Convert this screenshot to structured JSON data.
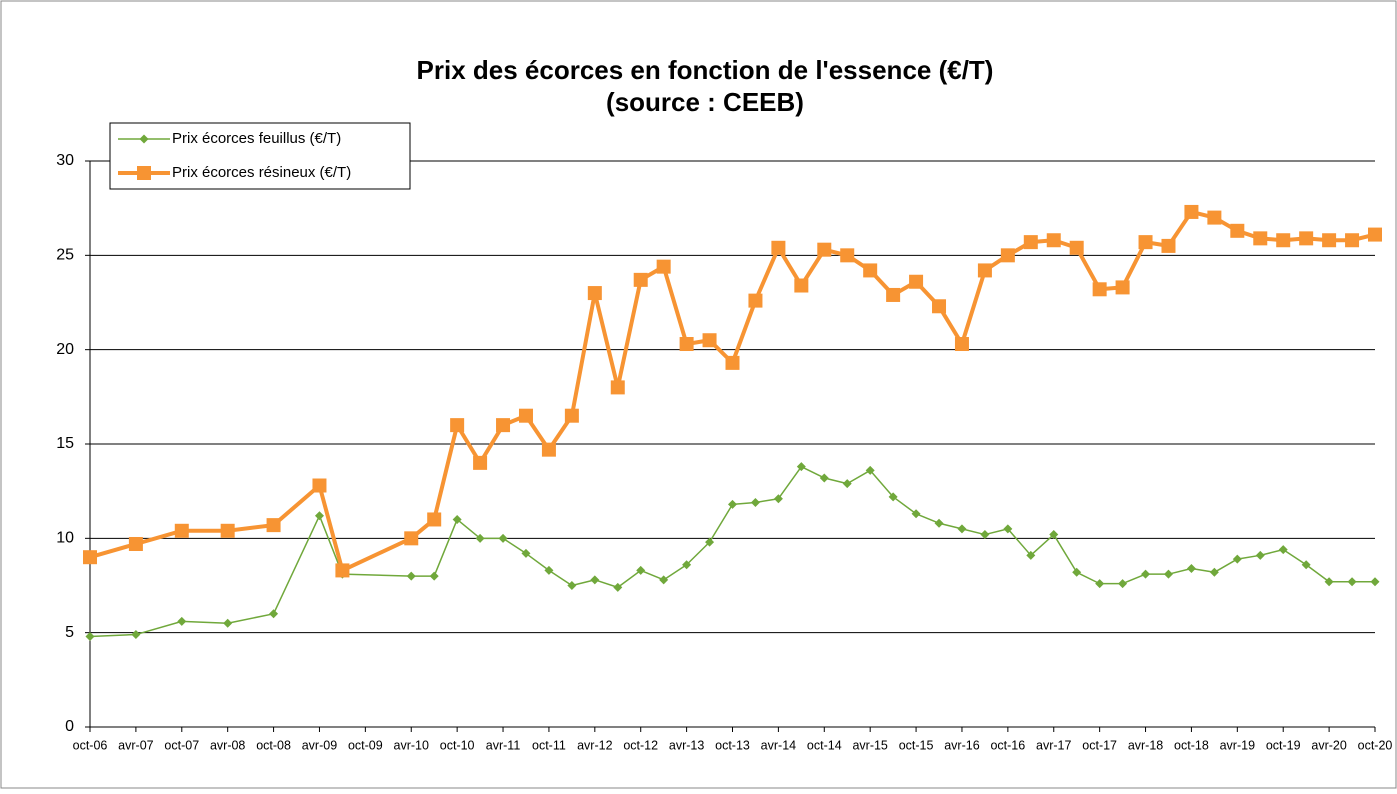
{
  "chart_data": {
    "type": "line",
    "title": "Prix des écorces en fonction de l'essence (€/T)",
    "subtitle": "(source : CEEB)",
    "categories": [
      "oct-06",
      null,
      "avr-07",
      null,
      "oct-07",
      null,
      "avr-08",
      null,
      "oct-08",
      null,
      "avr-09",
      null,
      "oct-09",
      null,
      "avr-10",
      null,
      "oct-10",
      null,
      "avr-11",
      null,
      "oct-11",
      null,
      "avr-12",
      null,
      "oct-12",
      null,
      "avr-13",
      null,
      "oct-13",
      null,
      "avr-14",
      null,
      "oct-14",
      null,
      "avr-15",
      null,
      "oct-15",
      null,
      "avr-16",
      null,
      "oct-16",
      null,
      "avr-17",
      null,
      "oct-17",
      null,
      "avr-18",
      null,
      "oct-18",
      null,
      "avr-19",
      null,
      "oct-19",
      null,
      "avr-20",
      null,
      "oct-20"
    ],
    "series": [
      {
        "name": "Prix écorces feuillus (€/T)",
        "color": "#70a83b",
        "marker": "diamond",
        "values": [
          4.8,
          null,
          4.9,
          null,
          5.6,
          null,
          5.5,
          null,
          6.0,
          null,
          11.2,
          8.1,
          null,
          null,
          8.0,
          8.0,
          11.0,
          10.0,
          10.0,
          9.2,
          8.3,
          7.5,
          7.8,
          7.4,
          8.3,
          7.8,
          8.6,
          9.8,
          11.8,
          11.9,
          12.1,
          13.8,
          13.2,
          12.9,
          13.6,
          12.2,
          11.3,
          10.8,
          10.5,
          10.2,
          10.5,
          9.1,
          10.2,
          8.2,
          7.6,
          7.6,
          8.1,
          8.1,
          8.4,
          8.2,
          8.9,
          9.1,
          9.4,
          8.6,
          7.7,
          7.7,
          7.7
        ]
      },
      {
        "name": "Prix écorces résineux (€/T)",
        "color": "#f79433",
        "marker": "square",
        "values": [
          9.0,
          null,
          9.7,
          null,
          10.4,
          null,
          10.4,
          null,
          10.7,
          null,
          12.8,
          8.3,
          null,
          null,
          10.0,
          11.0,
          16.0,
          14.0,
          16.0,
          16.5,
          14.7,
          16.5,
          23.0,
          18.0,
          23.7,
          24.4,
          20.3,
          20.5,
          19.3,
          22.6,
          25.4,
          23.4,
          25.3,
          25.0,
          24.2,
          22.9,
          23.6,
          22.3,
          20.3,
          24.2,
          25.0,
          25.7,
          25.8,
          25.4,
          23.2,
          23.3,
          25.7,
          25.5,
          27.3,
          27.0,
          26.3,
          25.9,
          25.8,
          25.9,
          25.8,
          25.8,
          26.1
        ]
      }
    ],
    "ylim": [
      0,
      30
    ],
    "yticks": [
      0,
      5,
      10,
      15,
      20,
      25,
      30
    ],
    "grid": true,
    "legend": "top-left"
  }
}
